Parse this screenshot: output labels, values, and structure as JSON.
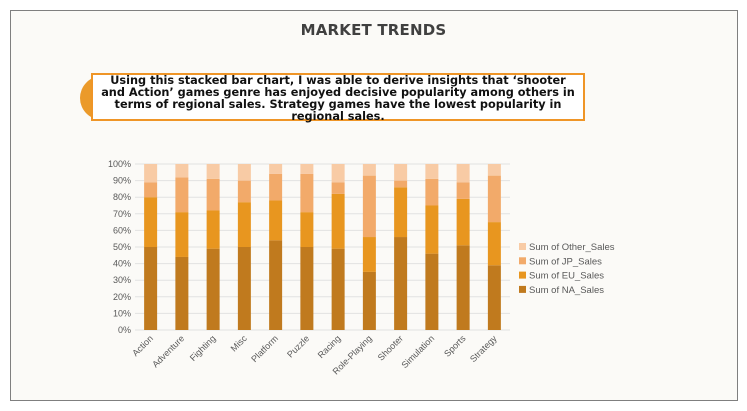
{
  "page": {
    "title": "MARKET TRENDS",
    "insight": "Using this stacked bar chart, I was able to derive insights that ‘shooter and Action’ games genre has enjoyed decisive popularity among others in terms of regional sales. Strategy games have the lowest popularity in regional sales."
  },
  "colors": {
    "NA": "#c07a1e",
    "EU": "#e8961f",
    "JP": "#f2aa6a",
    "Other": "#f8cba5",
    "accent": "#ef9527",
    "grid": "#e2e2e2"
  },
  "chart_data": {
    "type": "bar",
    "stacked": true,
    "percent": true,
    "categories": [
      "Action",
      "Adventure",
      "Fighting",
      "Misc",
      "Platform",
      "Puzzle",
      "Racing",
      "Role-Playing",
      "Shooter",
      "Simulation",
      "Sports",
      "Strategy"
    ],
    "series": [
      {
        "name": "Sum of NA_Sales",
        "key": "NA",
        "values": [
          50,
          44,
          49,
          50,
          54,
          50,
          49,
          35,
          56,
          46,
          51,
          39
        ]
      },
      {
        "name": "Sum of EU_Sales",
        "key": "EU",
        "values": [
          30,
          27,
          23,
          27,
          24,
          21,
          33,
          21,
          30,
          29,
          28,
          26
        ]
      },
      {
        "name": "Sum of JP_Sales",
        "key": "JP",
        "values": [
          9,
          21,
          19,
          13,
          16,
          23,
          7,
          37,
          4,
          16,
          10,
          28
        ]
      },
      {
        "name": "Sum of Other_Sales",
        "key": "Other",
        "values": [
          11,
          8,
          9,
          10,
          6,
          6,
          11,
          7,
          10,
          9,
          11,
          7
        ]
      }
    ],
    "yticks": [
      "0%",
      "10%",
      "20%",
      "30%",
      "40%",
      "50%",
      "60%",
      "70%",
      "80%",
      "90%",
      "100%"
    ],
    "ylim": [
      0,
      100
    ],
    "legend_order": [
      "Other",
      "JP",
      "EU",
      "NA"
    ],
    "legend": "right",
    "grid": true
  }
}
